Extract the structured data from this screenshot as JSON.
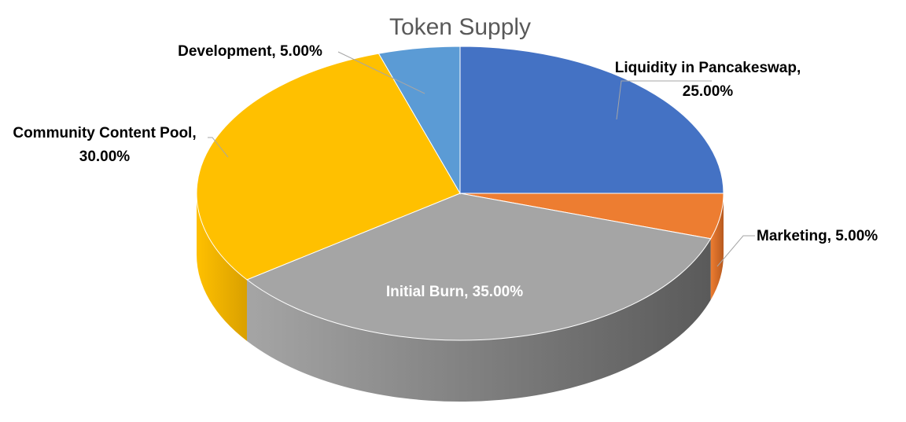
{
  "chart_data": {
    "type": "pie",
    "style": "3d",
    "title": "Token Supply",
    "slices": [
      {
        "name": "Liquidity in Pancakeswap",
        "value": 25.0,
        "label_lines": [
          "Liquidity in Pancakeswap,",
          "25.00%"
        ],
        "color": "#4472c4",
        "side": "#2f5597"
      },
      {
        "name": "Marketing",
        "value": 5.0,
        "label_lines": [
          "Marketing, 5.00%"
        ],
        "color": "#ed7d31",
        "side": "#b85a1f"
      },
      {
        "name": "Initial Burn",
        "value": 35.0,
        "label_lines": [
          "Initial Burn, 35.00%"
        ],
        "color": "#a5a5a5",
        "side": "#5a5a5a"
      },
      {
        "name": "Community Content Pool",
        "value": 30.0,
        "label_lines": [
          "Community Content Pool,",
          "30.00%"
        ],
        "color": "#ffc000",
        "side": "#d9a000"
      },
      {
        "name": "Development",
        "value": 5.0,
        "label_lines": [
          "Development, 5.00%"
        ],
        "color": "#5b9bd5",
        "side": "#3a78b0"
      }
    ]
  }
}
